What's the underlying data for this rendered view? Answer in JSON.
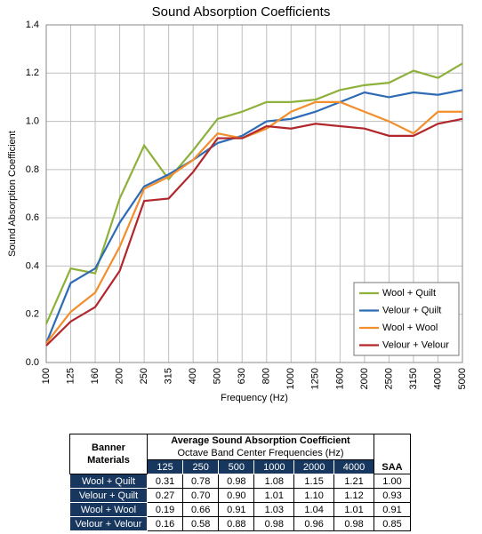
{
  "chart_data": {
    "type": "line",
    "title": "Sound Absorption Coefficients",
    "x_label": "Frequency (Hz)",
    "y_label": "Sound Absorption Coefficient",
    "categories": [
      "100",
      "125",
      "160",
      "200",
      "250",
      "315",
      "400",
      "500",
      "630",
      "800",
      "1000",
      "1250",
      "1600",
      "2000",
      "2500",
      "3150",
      "4000",
      "5000"
    ],
    "series": [
      {
        "name": "Wool + Quilt",
        "color": "#8db13a",
        "values": [
          0.16,
          0.39,
          0.37,
          0.68,
          0.9,
          0.76,
          0.88,
          1.01,
          1.04,
          1.08,
          1.08,
          1.09,
          1.13,
          1.15,
          1.16,
          1.21,
          1.18,
          1.24
        ]
      },
      {
        "name": "Velour + Quilt",
        "color": "#2e6bb5",
        "values": [
          0.08,
          0.33,
          0.39,
          0.58,
          0.73,
          0.78,
          0.84,
          0.91,
          0.94,
          1.0,
          1.01,
          1.04,
          1.08,
          1.12,
          1.1,
          1.12,
          1.11,
          1.13
        ]
      },
      {
        "name": "Wool + Wool",
        "color": "#f28e2b",
        "values": [
          0.08,
          0.21,
          0.29,
          0.48,
          0.72,
          0.77,
          0.84,
          0.95,
          0.93,
          0.97,
          1.04,
          1.08,
          1.08,
          1.04,
          1.0,
          0.95,
          1.04,
          1.04
        ]
      },
      {
        "name": "Velour + Velour",
        "color": "#b2272b",
        "values": [
          0.07,
          0.17,
          0.23,
          0.38,
          0.67,
          0.68,
          0.79,
          0.93,
          0.93,
          0.98,
          0.97,
          0.99,
          0.98,
          0.97,
          0.94,
          0.94,
          0.99,
          1.01
        ]
      }
    ],
    "ylim": [
      0,
      1.4
    ],
    "yticks": [
      {
        "value": 0,
        "label": "0.0"
      },
      0.2,
      0.4,
      0.6,
      0.8,
      {
        "value": 1,
        "label": "1.0"
      },
      1.2,
      1.4
    ],
    "grid": true,
    "legend": "lower right"
  },
  "table": {
    "header": {
      "materials": "Banner Materials",
      "title": "Average Sound Absorption Coefficient",
      "subtitle": "Octave Band Center Frequencies (Hz)",
      "columns": [
        "125",
        "250",
        "500",
        "1000",
        "2000",
        "4000"
      ],
      "saa": "SAA"
    },
    "rows": [
      [
        "Wool + Quilt",
        "0.31",
        "0.78",
        "0.98",
        "1.08",
        "1.15",
        "1.21",
        "1.00"
      ],
      [
        "Velour + Quilt",
        "0.27",
        "0.70",
        "0.90",
        "1.01",
        "1.10",
        "1.12",
        "0.93"
      ],
      [
        "Wool + Wool",
        "0.19",
        "0.66",
        "0.91",
        "1.03",
        "1.04",
        "1.01",
        "0.91"
      ],
      [
        "Velour + Velour",
        "0.16",
        "0.58",
        "0.88",
        "0.98",
        "0.96",
        "0.98",
        "0.85"
      ]
    ]
  }
}
